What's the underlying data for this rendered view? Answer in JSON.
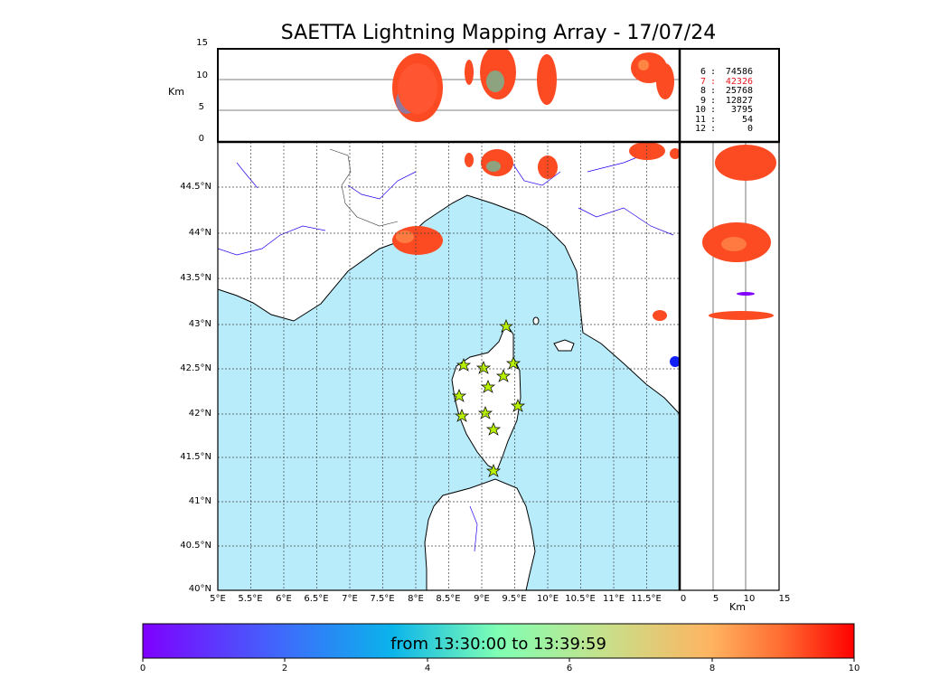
{
  "title": "SAETTA Lightning Mapping Array - 17/07/24",
  "alt_axis_label": "Km",
  "alt_ticks": [
    "15",
    "10",
    "5",
    "0"
  ],
  "lat_ticks": [
    "44.5°N",
    "44°N",
    "43.5°N",
    "43°N",
    "42.5°N",
    "42°N",
    "41.5°N",
    "41°N",
    "40.5°N",
    "40°N"
  ],
  "lon_ticks": [
    "5°E",
    "5.5°E",
    "6°E",
    "6.5°E",
    "7°E",
    "7.5°E",
    "8°E",
    "8.5°E",
    "9°E",
    "9.5°E",
    "10°E",
    "10.5°E",
    "11°E",
    "11.5°E"
  ],
  "side_ticks": [
    "0",
    "5",
    "10",
    "15"
  ],
  "side_axis_label": "Km",
  "station_counts": [
    {
      "n": "6",
      "count": "74586",
      "color": "#000000"
    },
    {
      "n": "7",
      "count": "42326",
      "color": "#e8161b"
    },
    {
      "n": "8",
      "count": "25768",
      "color": "#000000"
    },
    {
      "n": "9",
      "count": "12827",
      "color": "#000000"
    },
    {
      "n": "10",
      "count": "3795",
      "color": "#000000"
    },
    {
      "n": "11",
      "count": "54",
      "color": "#000000"
    },
    {
      "n": "12",
      "count": "0",
      "color": "#000000"
    }
  ],
  "colorbar": {
    "label": "from 13:30:00 to 13:39:59",
    "ticks": [
      "0",
      "2",
      "4",
      "6",
      "8",
      "10"
    ]
  },
  "colors": {
    "sea": "#b8ecfa",
    "lightning": "#fc4a22",
    "stars": "#b7f000",
    "rivers": "#2200ee"
  }
}
